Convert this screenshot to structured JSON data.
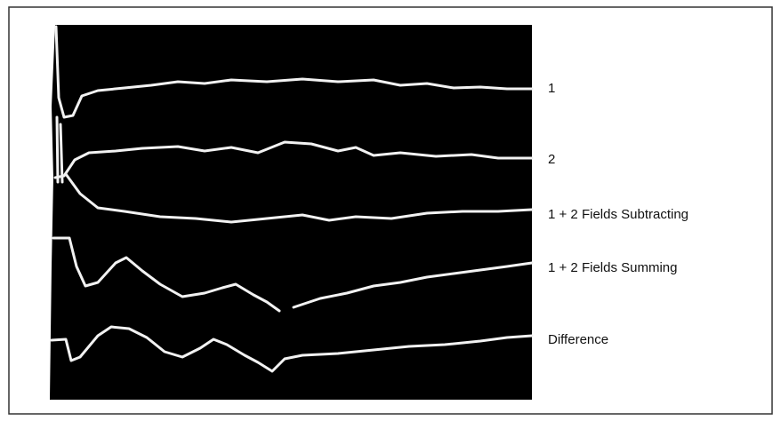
{
  "labels": [
    "1",
    "2",
    "1 + 2 Fields Subtracting",
    "1 + 2 Fields Summing",
    "Difference"
  ]
}
